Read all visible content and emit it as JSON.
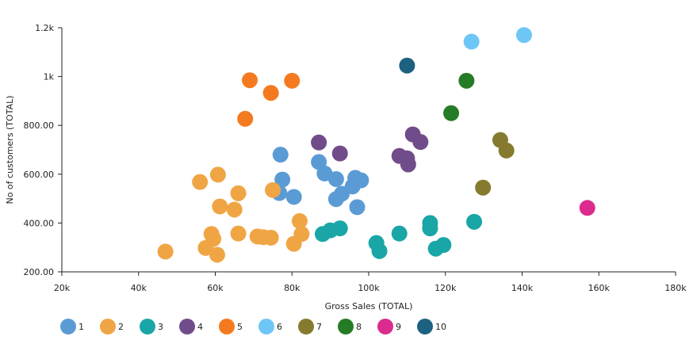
{
  "chart_data": {
    "type": "scatter",
    "xlabel": "Gross Sales (TOTAL)",
    "ylabel": "No of customers (TOTAL)",
    "xlim": [
      20000,
      180000
    ],
    "ylim": [
      200,
      1200
    ],
    "xticks": [
      {
        "value": 20000,
        "label": "20k"
      },
      {
        "value": 40000,
        "label": "40k"
      },
      {
        "value": 60000,
        "label": "60k"
      },
      {
        "value": 80000,
        "label": "80k"
      },
      {
        "value": 100000,
        "label": "100k"
      },
      {
        "value": 120000,
        "label": "120k"
      },
      {
        "value": 140000,
        "label": "140k"
      },
      {
        "value": 160000,
        "label": "160k"
      },
      {
        "value": 180000,
        "label": "180k"
      }
    ],
    "yticks": [
      {
        "value": 200,
        "label": "200.00"
      },
      {
        "value": 400,
        "label": "400.00"
      },
      {
        "value": 600,
        "label": "600.00"
      },
      {
        "value": 800,
        "label": "800.00"
      },
      {
        "value": 1000,
        "label": "1k"
      },
      {
        "value": 1200,
        "label": "1.2k"
      }
    ],
    "grid": false,
    "legend_position": "bottom-left",
    "series": [
      {
        "name": "1",
        "color": "#5b9bd5",
        "points": [
          [
            77000,
            680
          ],
          [
            77500,
            578
          ],
          [
            76700,
            523
          ],
          [
            80500,
            507
          ],
          [
            87000,
            650
          ],
          [
            88500,
            603
          ],
          [
            91500,
            580
          ],
          [
            91500,
            498
          ],
          [
            93000,
            520
          ],
          [
            95800,
            550
          ],
          [
            96500,
            585
          ],
          [
            98000,
            575
          ],
          [
            97000,
            465
          ]
        ]
      },
      {
        "name": "2",
        "color": "#f0a545",
        "points": [
          [
            47000,
            283
          ],
          [
            56000,
            568
          ],
          [
            57500,
            298
          ],
          [
            59000,
            355
          ],
          [
            59500,
            335
          ],
          [
            60500,
            270
          ],
          [
            60700,
            598
          ],
          [
            61200,
            468
          ],
          [
            65000,
            455
          ],
          [
            66000,
            522
          ],
          [
            66000,
            357
          ],
          [
            71000,
            345
          ],
          [
            72500,
            342
          ],
          [
            74500,
            340
          ],
          [
            75000,
            535
          ],
          [
            80500,
            315
          ],
          [
            82000,
            408
          ],
          [
            82500,
            355
          ]
        ]
      },
      {
        "name": "3",
        "color": "#1aa6a6",
        "points": [
          [
            88000,
            355
          ],
          [
            90000,
            370
          ],
          [
            92500,
            378
          ],
          [
            102000,
            318
          ],
          [
            102800,
            285
          ],
          [
            108000,
            357
          ],
          [
            116000,
            400
          ],
          [
            116000,
            378
          ],
          [
            117500,
            295
          ],
          [
            119500,
            310
          ],
          [
            127500,
            405
          ]
        ]
      },
      {
        "name": "4",
        "color": "#714c8a",
        "points": [
          [
            87000,
            730
          ],
          [
            92500,
            685
          ],
          [
            108000,
            675
          ],
          [
            110000,
            665
          ],
          [
            110300,
            640
          ],
          [
            111500,
            763
          ],
          [
            113500,
            732
          ]
        ]
      },
      {
        "name": "5",
        "color": "#f47a20",
        "points": [
          [
            67800,
            827
          ],
          [
            69000,
            985
          ],
          [
            74500,
            933
          ],
          [
            80000,
            983
          ]
        ]
      },
      {
        "name": "6",
        "color": "#6ec6f6",
        "points": [
          [
            126800,
            1143
          ],
          [
            140500,
            1170
          ]
        ]
      },
      {
        "name": "7",
        "color": "#857a2e",
        "points": [
          [
            129800,
            545
          ],
          [
            134300,
            740
          ],
          [
            135900,
            697
          ]
        ]
      },
      {
        "name": "8",
        "color": "#267b26",
        "points": [
          [
            121500,
            850
          ],
          [
            125500,
            983
          ]
        ]
      },
      {
        "name": "9",
        "color": "#dc2b8e",
        "points": [
          [
            157000,
            462
          ]
        ]
      },
      {
        "name": "10",
        "color": "#1d6180",
        "points": [
          [
            110000,
            1045
          ]
        ]
      }
    ]
  }
}
